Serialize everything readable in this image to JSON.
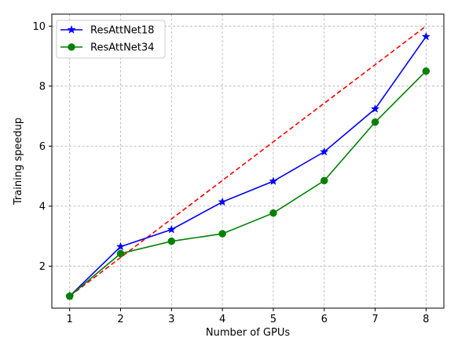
{
  "chart_data": {
    "type": "line",
    "title": "",
    "xlabel": "Number of GPUs",
    "ylabel": "Training speedup",
    "x": [
      1,
      2,
      3,
      4,
      5,
      6,
      7,
      8
    ],
    "xlim": [
      0.65,
      8.35
    ],
    "ylim": [
      0.6,
      10.4
    ],
    "xticks": [
      1,
      2,
      3,
      4,
      5,
      6,
      7,
      8
    ],
    "yticks": [
      2,
      4,
      6,
      8,
      10
    ],
    "grid": true,
    "legend_position": "top-left",
    "series": [
      {
        "name": "ResAttNet18",
        "color": "#0000ff",
        "marker": "star",
        "values": [
          1.0,
          2.65,
          3.22,
          4.14,
          4.83,
          5.81,
          7.24,
          9.65
        ]
      },
      {
        "name": "ResAttNet34",
        "color": "#008000",
        "marker": "circle",
        "values": [
          1.0,
          2.42,
          2.83,
          3.08,
          3.77,
          4.85,
          6.8,
          8.5
        ]
      }
    ],
    "reference_line": {
      "color": "#ff0000",
      "style": "dashed",
      "points": [
        [
          1,
          1.0
        ],
        [
          8,
          10.0
        ]
      ]
    }
  }
}
